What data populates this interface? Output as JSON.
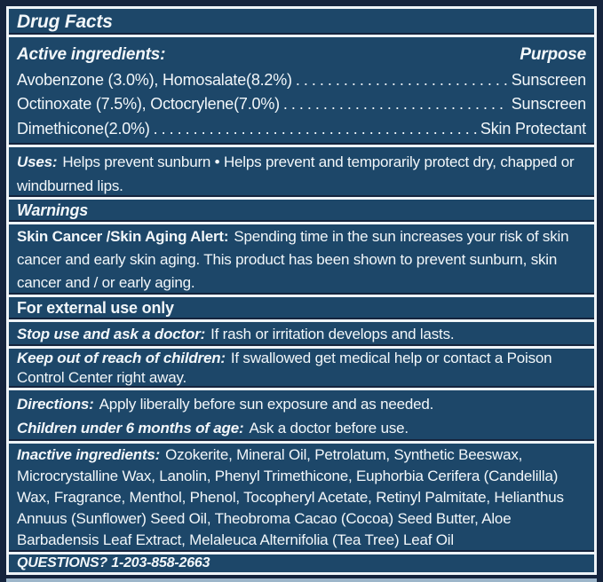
{
  "colors": {
    "panel_blue": "#1d4769",
    "frame_navy": "#15243d",
    "rule_white": "#eef3f7",
    "text_white": "#f2f7fa",
    "bottom_strip_blue": "#9db6ca"
  },
  "title": "Drug Facts",
  "actives": {
    "heading": "Active ingredients:",
    "purpose_heading": "Purpose",
    "rows": [
      {
        "ingredient": "Avobenzone (3.0%), Homosalate(8.2%)",
        "purpose": "Sunscreen"
      },
      {
        "ingredient": "Octinoxate (7.5%), Octocrylene(7.0%)",
        "purpose": "Sunscreen"
      },
      {
        "ingredient": "Dimethicone(2.0%)",
        "purpose": "Skin Protectant"
      }
    ]
  },
  "uses": {
    "label": "Uses:",
    "text": "Helps prevent sunburn • Helps prevent and temporarily protect dry, chapped or windburned lips."
  },
  "warnings": {
    "heading": "Warnings"
  },
  "alert": {
    "label": "Skin Cancer /Skin Aging Alert:",
    "text": "Spending time in the sun increases your risk of skin cancer and early skin aging. This product has been shown to prevent sunburn, skin cancer and / or early aging."
  },
  "external_use": {
    "text": "For external use only"
  },
  "stop_use": {
    "label": "Stop use and ask a doctor:",
    "text": "If rash or irritation develops and lasts."
  },
  "keep_out": {
    "label": "Keep out of reach of children:",
    "text": "If swallowed get medical help or contact a Poison Control Center right away."
  },
  "directions": {
    "label": "Directions:",
    "text": "Apply liberally before sun exposure and as needed."
  },
  "children": {
    "label": "Children under 6 months of age:",
    "text": "Ask a doctor before use."
  },
  "inactive": {
    "label": "Inactive ingredients:",
    "text": "Ozokerite, Mineral Oil, Petrolatum, Synthetic Beeswax, Microcrystalline Wax, Lanolin, Phenyl Trimethicone, Euphorbia Cerifera (Candelilla) Wax, Fragrance, Menthol, Phenol, Tocopheryl Acetate, Retinyl Palmitate, Helianthus Annuus (Sunflower) Seed Oil, Theobroma Cacao (Cocoa) Seed Butter, Aloe Barbadensis Leaf Extract, Melaleuca Alternifolia (Tea Tree) Leaf Oil"
  },
  "questions": {
    "text": "QUESTIONS? 1-203-858-2663"
  }
}
